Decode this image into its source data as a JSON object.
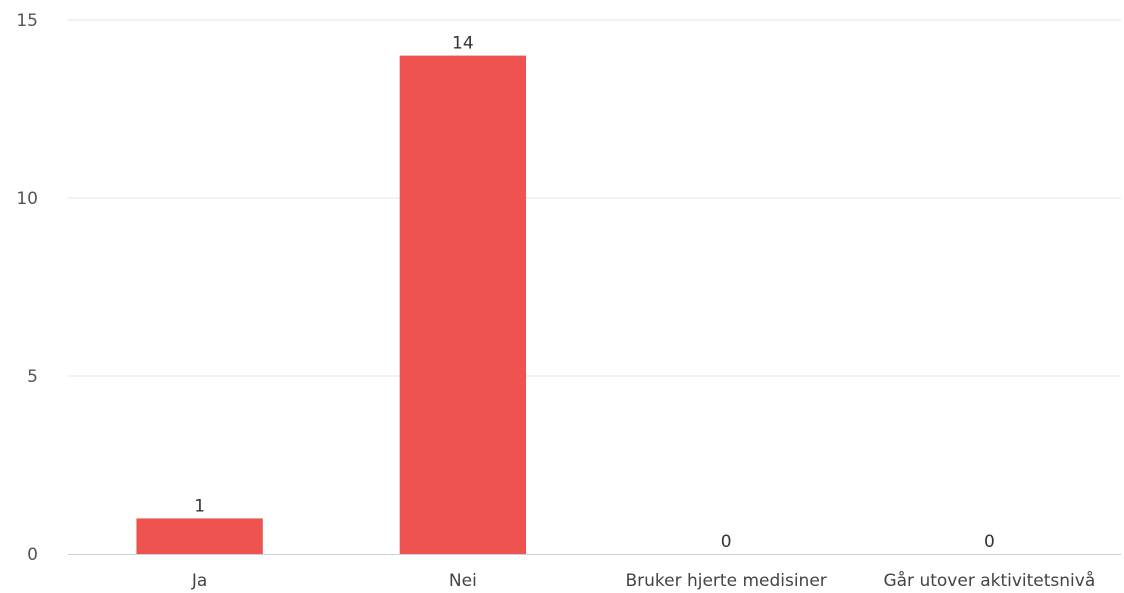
{
  "chart_data": {
    "type": "bar",
    "title": "",
    "xlabel": "",
    "ylabel": "",
    "categories": [
      "Ja",
      "Nei",
      "Bruker hjerte medisiner",
      "Går utover aktivitetsnivå"
    ],
    "values": [
      1,
      14,
      0,
      0
    ],
    "yticks": [
      0,
      5,
      10,
      15
    ],
    "ylim": [
      0,
      15
    ],
    "grid": true,
    "legend": "none",
    "bar_color": "#ef5350",
    "data_labels": true
  }
}
